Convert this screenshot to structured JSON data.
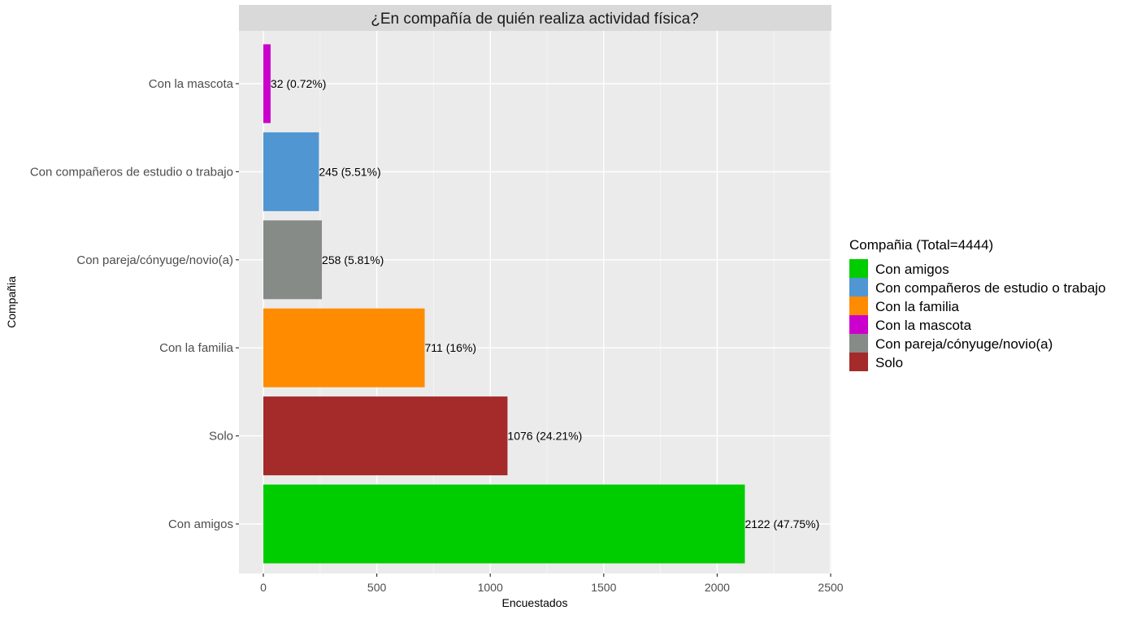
{
  "chart_data": {
    "type": "bar",
    "orientation": "horizontal",
    "title": "¿En compañía de quién realiza actividad física?",
    "xlabel": "Encuestados",
    "ylabel": "Compañia",
    "xlim": [
      0,
      2500
    ],
    "x_ticks": [
      0,
      500,
      1000,
      1500,
      2000,
      2500
    ],
    "grid": true,
    "legend_position": "right",
    "categories": [
      "Con la mascota",
      "Con compañeros de estudio o trabajo",
      "Con pareja/cónyuge/novio(a)",
      "Con la familia",
      "Solo",
      "Con amigos"
    ],
    "values": [
      32,
      245,
      258,
      711,
      1076,
      2122
    ],
    "bar_labels": [
      "32 (0.72%)",
      "245 (5.51%)",
      "258 (5.81%)",
      "711 (16%)",
      "1076 (24.21%)",
      "2122 (47.75%)"
    ],
    "bar_colors": [
      "#CC00CC",
      "#5096D2",
      "#868B88",
      "#FF8C00",
      "#A52A2A",
      "#00CD00"
    ],
    "legend": {
      "title": "Compañia (Total=4444)",
      "entries": [
        {
          "label": "Con amigos",
          "color": "#00CD00"
        },
        {
          "label": "Con compañeros de estudio o trabajo",
          "color": "#5096D2"
        },
        {
          "label": "Con la familia",
          "color": "#FF8C00"
        },
        {
          "label": "Con la mascota",
          "color": "#CC00CC"
        },
        {
          "label": "Con pareja/cónyuge/novio(a)",
          "color": "#868B88"
        },
        {
          "label": "Solo",
          "color": "#A52A2A"
        }
      ]
    }
  }
}
